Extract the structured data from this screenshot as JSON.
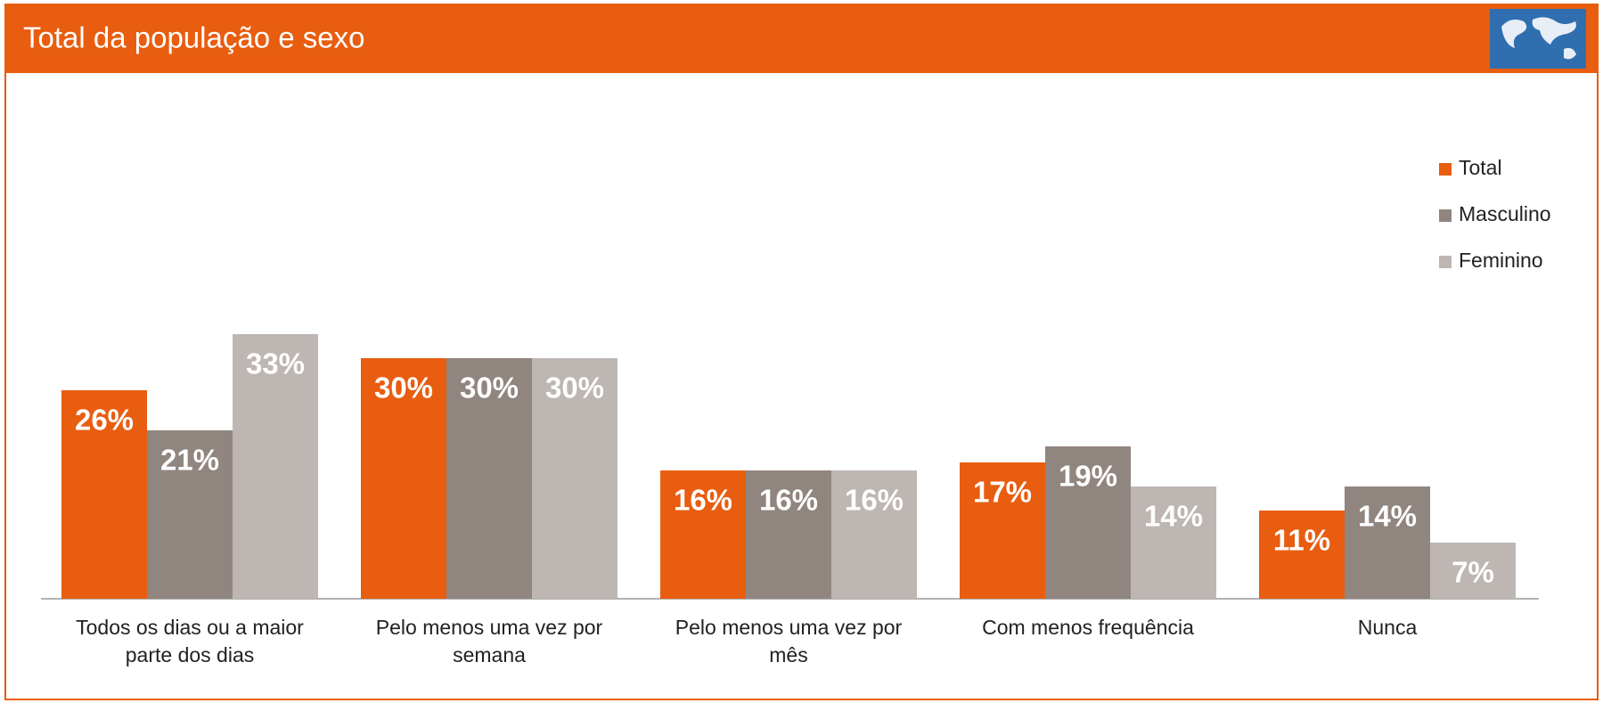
{
  "chart_data": {
    "type": "bar",
    "title": "Total da população e sexo",
    "categories": [
      "Todos os dias ou a maior parte dos dias",
      "Pelo menos uma vez por semana",
      "Pelo menos uma vez por mês",
      "Com menos frequência",
      "Nunca"
    ],
    "series": [
      {
        "name": "Total",
        "color": "#e85d10",
        "values": [
          26,
          30,
          16,
          17,
          11
        ],
        "value_labels": [
          "26%",
          "30%",
          "16%",
          "17%",
          "11%"
        ]
      },
      {
        "name": "Masculino",
        "color": "#918580",
        "values": [
          21,
          30,
          16,
          19,
          14
        ],
        "value_labels": [
          "21%",
          "30%",
          "16%",
          "19%",
          "14%"
        ]
      },
      {
        "name": "Feminino",
        "color": "#bdb6b3",
        "values": [
          33,
          30,
          16,
          14,
          7
        ],
        "value_labels": [
          "33%",
          "30%",
          "16%",
          "14%",
          "7%"
        ]
      }
    ],
    "legend": "right"
  }
}
